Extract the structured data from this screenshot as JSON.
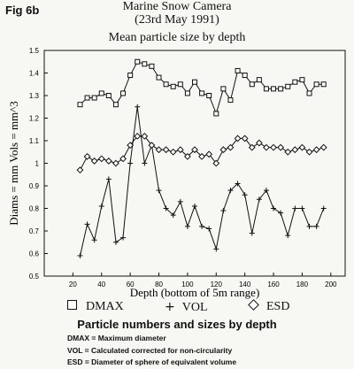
{
  "figure_label": "Fig 6b",
  "chart_data": {
    "type": "line",
    "title": "Marine Snow Camera",
    "subtitle": "(23rd May 1991)",
    "subtitle2": "Mean particle size by depth",
    "xlabel": "Depth (bottom of 5m range)",
    "ylabel": "Diams = mm  Vols = mm^3",
    "xlim": [
      0,
      210
    ],
    "ylim": [
      0.5,
      1.5
    ],
    "x_ticks": [
      20,
      40,
      60,
      80,
      100,
      120,
      140,
      160,
      180,
      200
    ],
    "y_ticks": [
      0.5,
      0.6,
      0.7,
      0.8,
      0.9,
      1,
      1.1,
      1.2,
      1.3,
      1.4,
      1.5
    ],
    "y_tick_labels": [
      "0.5",
      "0.6",
      "0.7",
      "0.8",
      "0.9",
      "1",
      "1.1",
      "1.2",
      "1.3",
      "1.4",
      "1.5"
    ],
    "grid": false,
    "series": [
      {
        "name": "DMAX",
        "marker": "square",
        "x": [
          25,
          30,
          35,
          40,
          45,
          50,
          55,
          60,
          65,
          70,
          75,
          80,
          85,
          90,
          95,
          100,
          105,
          110,
          115,
          120,
          125,
          130,
          135,
          140,
          145,
          150,
          155,
          160,
          165,
          170,
          175,
          180,
          185,
          190,
          195
        ],
        "values": [
          1.26,
          1.29,
          1.29,
          1.31,
          1.3,
          1.26,
          1.31,
          1.39,
          1.45,
          1.44,
          1.43,
          1.38,
          1.35,
          1.34,
          1.35,
          1.31,
          1.36,
          1.31,
          1.3,
          1.22,
          1.33,
          1.28,
          1.41,
          1.39,
          1.35,
          1.37,
          1.33,
          1.33,
          1.33,
          1.34,
          1.36,
          1.37,
          1.31,
          1.35,
          1.35
        ]
      },
      {
        "name": "VOL",
        "marker": "plus",
        "x": [
          25,
          30,
          35,
          40,
          45,
          50,
          55,
          60,
          65,
          70,
          75,
          80,
          85,
          90,
          95,
          100,
          105,
          110,
          115,
          120,
          125,
          130,
          135,
          140,
          145,
          150,
          155,
          160,
          165,
          170,
          175,
          180,
          185,
          190,
          195
        ],
        "values": [
          0.59,
          0.73,
          0.66,
          0.81,
          0.93,
          0.65,
          0.67,
          1.0,
          1.25,
          1.0,
          1.08,
          0.88,
          0.8,
          0.77,
          0.83,
          0.72,
          0.81,
          0.72,
          0.71,
          0.62,
          0.79,
          0.88,
          0.91,
          0.86,
          0.69,
          0.84,
          0.88,
          0.8,
          0.78,
          0.68,
          0.8,
          0.8,
          0.72,
          0.72,
          0.8
        ]
      },
      {
        "name": "ESD",
        "marker": "diamond",
        "x": [
          25,
          30,
          35,
          40,
          45,
          50,
          55,
          60,
          65,
          70,
          75,
          80,
          85,
          90,
          95,
          100,
          105,
          110,
          115,
          120,
          125,
          130,
          135,
          140,
          145,
          150,
          155,
          160,
          165,
          170,
          175,
          180,
          185,
          190,
          195
        ],
        "values": [
          0.97,
          1.03,
          1.01,
          1.02,
          1.01,
          1.0,
          1.02,
          1.08,
          1.12,
          1.12,
          1.08,
          1.06,
          1.06,
          1.05,
          1.06,
          1.03,
          1.06,
          1.03,
          1.04,
          1.0,
          1.06,
          1.07,
          1.11,
          1.11,
          1.07,
          1.09,
          1.07,
          1.07,
          1.07,
          1.05,
          1.06,
          1.07,
          1.05,
          1.06,
          1.07
        ]
      }
    ]
  },
  "legend": {
    "dmax": "DMAX",
    "vol": "VOL",
    "esd": "ESD"
  },
  "caption": {
    "title": "Particle numbers and sizes by depth",
    "line1": "DMAX = Maximum diameter",
    "line2": "VOL = Calculated corrected for non-circularity",
    "line3": "ESD = Diameter of sphere of equivalent volume"
  }
}
